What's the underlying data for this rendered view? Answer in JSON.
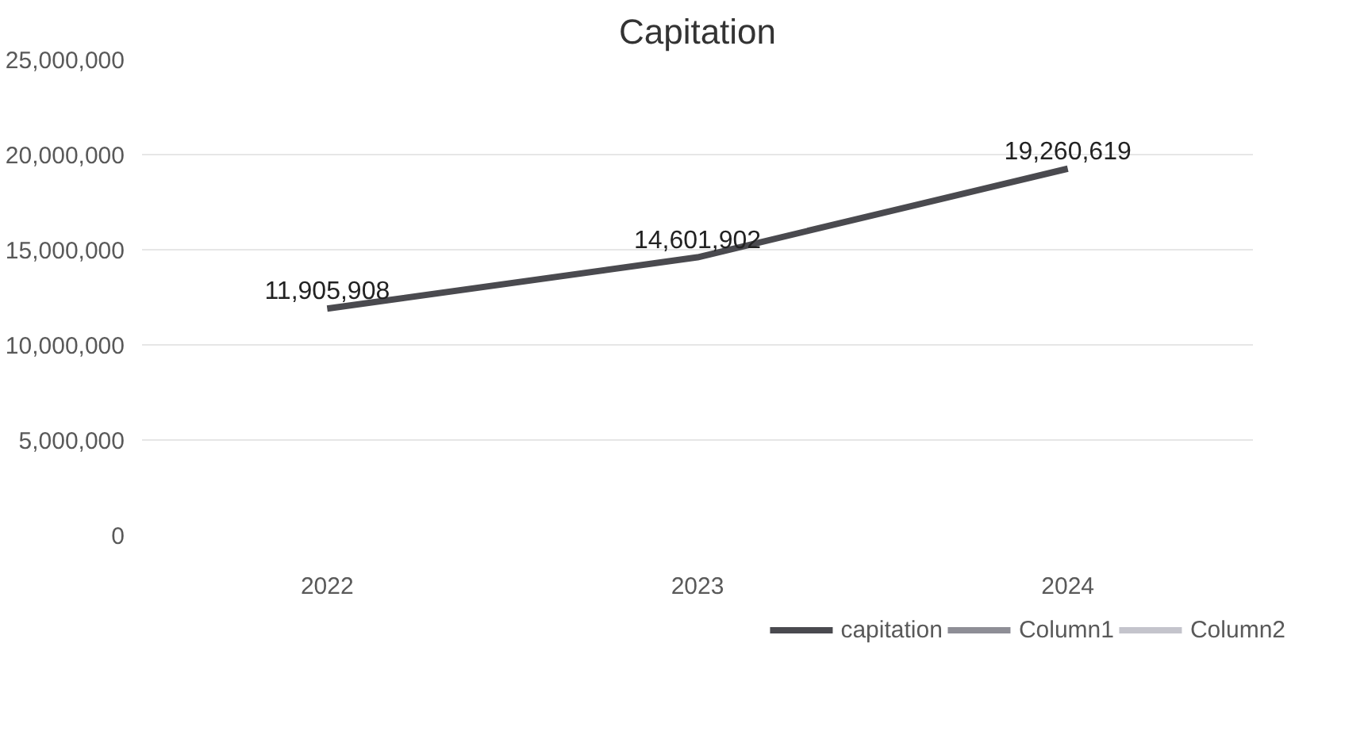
{
  "chart_data": {
    "type": "line",
    "title": "Capitation",
    "categories": [
      "2022",
      "2023",
      "2024"
    ],
    "series": [
      {
        "name": "capitation",
        "color": "#4a4a4f",
        "values": [
          11905908,
          14601902,
          19260619
        ],
        "value_labels": [
          "11,905,908",
          "14,601,902",
          "19,260,619"
        ]
      },
      {
        "name": "Column1",
        "color": "#8e8e96",
        "values": [
          null,
          null,
          null
        ]
      },
      {
        "name": "Column2",
        "color": "#c4c4cc",
        "values": [
          null,
          null,
          null
        ]
      }
    ],
    "ylim": [
      0,
      25000000
    ],
    "yticks": [
      {
        "value": 0,
        "label": "0"
      },
      {
        "value": 5000000,
        "label": "5,000,000"
      },
      {
        "value": 10000000,
        "label": "10,000,000"
      },
      {
        "value": 15000000,
        "label": "15,000,000"
      },
      {
        "value": 20000000,
        "label": "20,000,000"
      },
      {
        "value": 25000000,
        "label": "25,000,000"
      }
    ],
    "grid": "y",
    "legend": "bottom"
  }
}
